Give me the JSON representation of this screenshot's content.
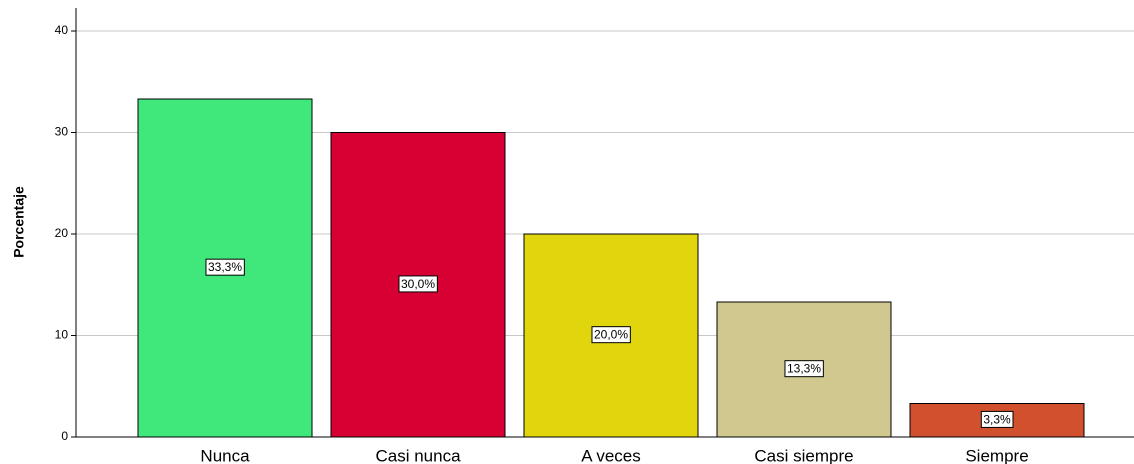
{
  "chart_data": {
    "type": "bar",
    "y_axis_label": "Porcentaje",
    "categories": [
      "Nunca",
      "Casi nunca",
      "A veces",
      "Casi siempre",
      "Siempre"
    ],
    "values": [
      33.3,
      30.0,
      20.0,
      13.3,
      3.3
    ],
    "value_labels": [
      "33,3%",
      "30,0%",
      "20,0%",
      "13,3%",
      "3,3%"
    ],
    "colors": [
      "#40e87c",
      "#d60032",
      "#e1d50e",
      "#d1c88f",
      "#d1512e"
    ],
    "ylim": [
      0,
      40
    ],
    "yticks": [
      0,
      10,
      20,
      30,
      40
    ],
    "grid": true
  }
}
